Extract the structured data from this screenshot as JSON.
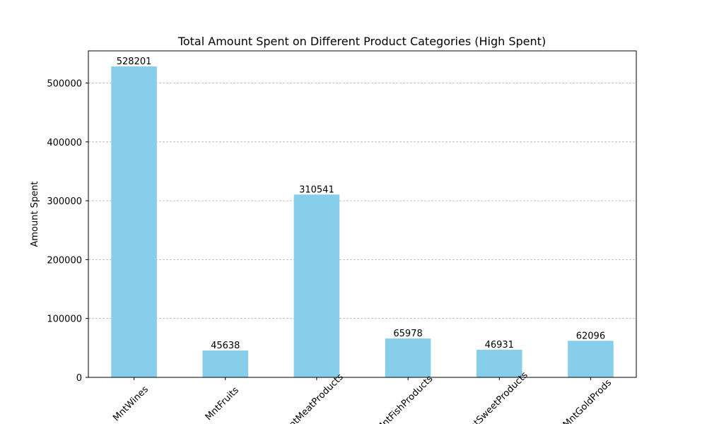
{
  "chart_data": {
    "type": "bar",
    "title": "Total Amount Spent on Different Product Categories (High Spent)",
    "y_label": "Amount Spent",
    "categories": [
      "MntWines",
      "MntFruits",
      "MntMeatProducts",
      "MntFishProducts",
      "MntSweetProducts",
      "MntGoldProds"
    ],
    "values": [
      528201,
      45638,
      310541,
      65978,
      46931,
      62096
    ],
    "color": "#87ceeb",
    "ylim": [
      0,
      554611
    ],
    "yticks": [
      0,
      100000,
      200000,
      300000,
      400000,
      500000
    ],
    "grid": true
  }
}
